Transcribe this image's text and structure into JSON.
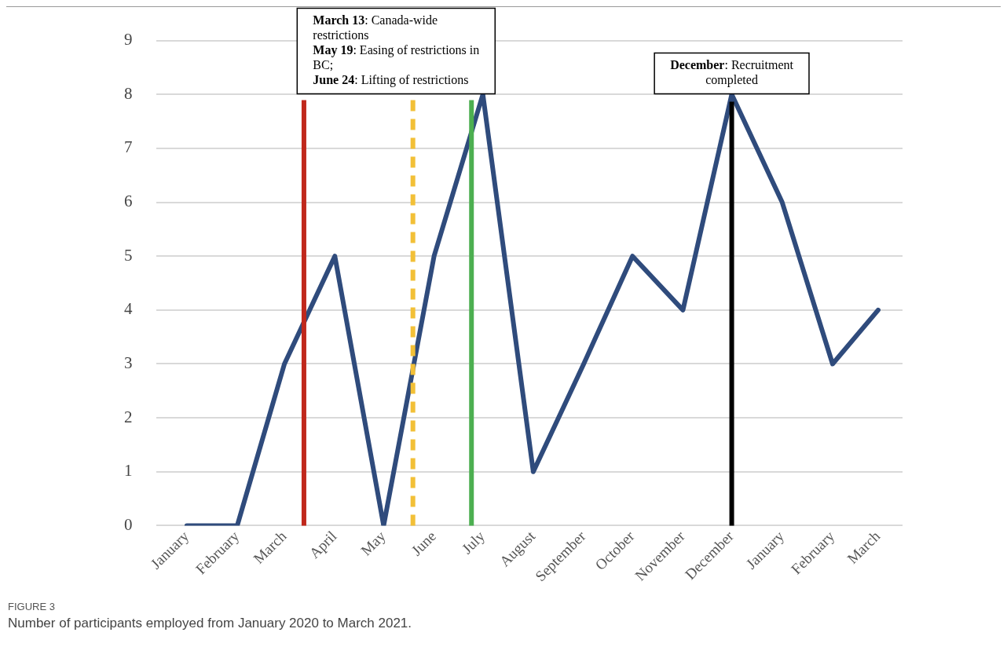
{
  "chart_data": {
    "type": "line",
    "x": [
      "2020-01",
      "2020-02",
      "2020-03",
      "2020-04",
      "2020-05",
      "2020-06",
      "2020-07",
      "2020-08",
      "2020-09",
      "2020-10",
      "2020-11",
      "2020-12",
      "2021-01",
      "2021-02",
      "2021-03"
    ],
    "series": [
      {
        "color": "#2f4b7c",
        "values": [
          0,
          0,
          3,
          5,
          0,
          5,
          8,
          1,
          3,
          5,
          4,
          8,
          6,
          3,
          4
        ]
      }
    ],
    "xlim": [
      "2019-12-13",
      "2021-03-16"
    ],
    "xticks": [
      {
        "value": "2020-01",
        "label": "January"
      },
      {
        "value": "2020-02",
        "label": "February"
      },
      {
        "value": "2020-03",
        "label": "March"
      },
      {
        "value": "2020-04",
        "label": "April"
      },
      {
        "value": "2020-05",
        "label": "May"
      },
      {
        "value": "2020-06",
        "label": "June"
      },
      {
        "value": "2020-07",
        "label": "July"
      },
      {
        "value": "2020-08",
        "label": "August"
      },
      {
        "value": "2020-09",
        "label": "September"
      },
      {
        "value": "2020-10",
        "label": "October"
      },
      {
        "value": "2020-11",
        "label": "November"
      },
      {
        "value": "2020-12",
        "label": "December"
      },
      {
        "value": "2021-01",
        "label": "January"
      },
      {
        "value": "2021-02",
        "label": "February"
      },
      {
        "value": "2021-03",
        "label": "March"
      }
    ],
    "ylim": [
      0,
      9
    ],
    "yticks": [
      0,
      1,
      2,
      3,
      4,
      5,
      6,
      7,
      8,
      9
    ],
    "grid": "y",
    "legend": false,
    "marker": "none",
    "line_style": "solid",
    "ref_lines": [
      {
        "axis": "x",
        "value": "2020-03-13",
        "label": "March 13: Canada-wide restrictions",
        "color": "#c0281c",
        "line_style": "solid"
      },
      {
        "axis": "x",
        "value": "2020-05-19",
        "label": "May 19: Easing of restrictions in BC;",
        "color": "#f2c037",
        "line_style": "dashed"
      },
      {
        "axis": "x",
        "value": "2020-06-24",
        "label": "June 24: Lifting of restrictions",
        "color": "#4caf50",
        "line_style": "solid"
      },
      {
        "axis": "x",
        "value": "2020-12",
        "label": "December: Recruitment completed",
        "color": "#000000",
        "line_style": "solid"
      }
    ],
    "annotations": [
      "FIGURE 3",
      "Number of participants employed from January 2020 to March 2021."
    ]
  }
}
